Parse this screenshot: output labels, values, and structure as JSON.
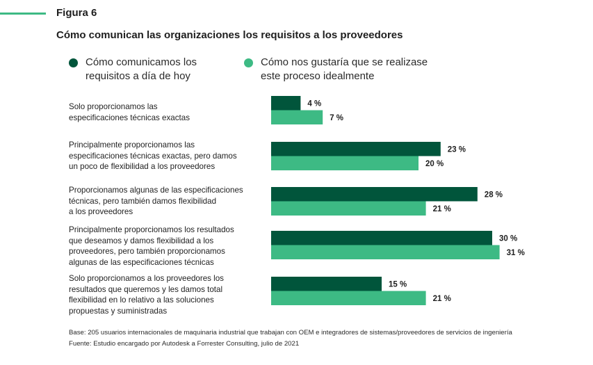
{
  "figure_label": "Figura 6",
  "chart_data": {
    "type": "bar",
    "orientation": "horizontal",
    "title": "Cómo comunican las organizaciones los requisitos a los proveedores",
    "categories": [
      "Solo proporcionamos las especificaciones técnicas exactas",
      "Principalmente proporcionamos las especificaciones técnicas exactas, pero damos un poco de flexibilidad a los proveedores",
      "Proporcionamos algunas de las especificaciones técnicas, pero también damos flexibilidad a los proveedores",
      "Principalmente proporcionamos los resultados que deseamos y damos flexibilidad a los proveedores, pero también proporcionamos algunas de las especificaciones técnicas",
      "Solo proporcionamos a los proveedores los resultados que queremos y les damos total flexibilidad en lo relativo a las soluciones propuestas y suministradas"
    ],
    "category_lines": [
      [
        "Solo proporcionamos las",
        "especificaciones técnicas exactas"
      ],
      [
        "Principalmente proporcionamos las",
        "especificaciones técnicas exactas, pero damos",
        "un poco de flexibilidad a los proveedores"
      ],
      [
        "Proporcionamos algunas de las especificaciones",
        "técnicas, pero también damos flexibilidad",
        "a los proveedores"
      ],
      [
        "Principalmente proporcionamos los resultados",
        "que deseamos y damos flexibilidad a los",
        "proveedores, pero también proporcionamos",
        "algunas de las especificaciones técnicas"
      ],
      [
        "Solo proporcionamos a los proveedores los",
        "resultados que queremos y les damos total",
        "flexibilidad en lo relativo a las soluciones",
        "propuestas y suministradas"
      ]
    ],
    "series": [
      {
        "name": "Cómo comunicamos los requisitos a día de hoy",
        "legend_lines": [
          "Cómo comunicamos los",
          "requisitos a día de hoy"
        ],
        "color": "#01553b",
        "values": [
          4,
          23,
          28,
          30,
          15
        ]
      },
      {
        "name": "Cómo nos gustaría que se realizase este proceso idealmente",
        "legend_lines": [
          "Cómo nos gustaría que se realizase",
          "este proceso idealmente"
        ],
        "color": "#3dba84",
        "values": [
          7,
          20,
          21,
          31,
          21
        ]
      }
    ],
    "value_suffix": " %",
    "xlim": [
      0,
      35
    ],
    "xlabel": "",
    "ylabel": "",
    "grid": false,
    "legend_position": "top-left"
  },
  "footnotes": {
    "base": "Base: 205 usuarios internacionales de maquinaria industrial que trabajan con OEM e integradores de sistemas/proveedores de servicios de ingeniería",
    "source": "Fuente: Estudio encargado por Autodesk a Forrester Consulting, julio de 2021"
  },
  "colors": {
    "accent": "#3dba84",
    "dark": "#01553b"
  }
}
